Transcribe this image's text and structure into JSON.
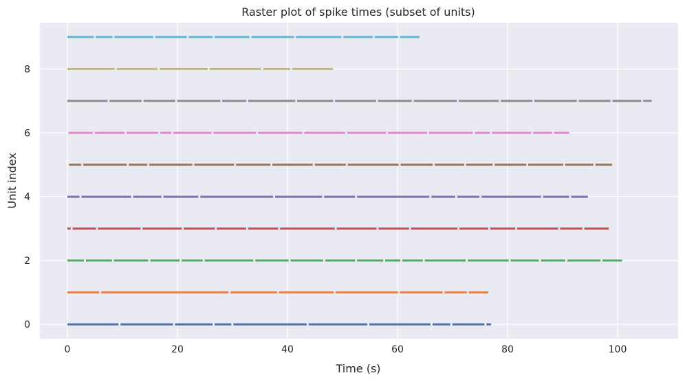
{
  "chart_data": {
    "type": "scatter",
    "subtype": "raster",
    "title": "Raster plot of spike times (subset of units)",
    "xlabel": "Time (s)",
    "ylabel": "Unit index",
    "xlim": [
      -5,
      111
    ],
    "ylim": [
      -0.45,
      9.45
    ],
    "x_ticks": [
      "0",
      "20",
      "40",
      "60",
      "80",
      "100"
    ],
    "y_ticks": [
      "0",
      "2",
      "4",
      "6",
      "8"
    ],
    "grid": true,
    "background": "#eaeaf2",
    "legend": "none",
    "series": [
      {
        "unit": 0,
        "t_start": 0.0,
        "t_end": 77.0,
        "color": "#4c72b0",
        "gaps": [
          9.3,
          19.2,
          26.4,
          29.8,
          43.5,
          54.5,
          66.0,
          69.6,
          75.8
        ]
      },
      {
        "unit": 1,
        "t_start": 0.0,
        "t_end": 76.5,
        "color": "#dd8452",
        "gaps": [
          5.8,
          29.3,
          38.1,
          48.4,
          60.1,
          68.2,
          72.6
        ]
      },
      {
        "unit": 2,
        "t_start": 0.0,
        "t_end": 100.8,
        "color": "#55a868",
        "gaps": [
          3.0,
          8.1,
          14.7,
          20.4,
          24.6,
          33.8,
          40.2,
          46.5,
          52.3,
          57.4,
          60.5,
          64.6,
          72.4,
          80.2,
          85.7,
          90.5,
          96.9
        ]
      },
      {
        "unit": 3,
        "t_start": 0.0,
        "t_end": 98.4,
        "color": "#c44e52",
        "gaps": [
          0.6,
          5.2,
          13.3,
          20.8,
          26.8,
          32.5,
          38.3,
          48.6,
          56.2,
          62.1,
          70.9,
          76.5,
          81.4,
          89.2,
          93.6
        ]
      },
      {
        "unit": 4,
        "t_start": 0.0,
        "t_end": 94.6,
        "color": "#8172b3",
        "gaps": [
          2.2,
          11.6,
          17.1,
          23.8,
          37.4,
          46.3,
          52.3,
          65.8,
          70.5,
          74.9,
          86.1,
          91.2
        ]
      },
      {
        "unit": 5,
        "t_start": 0.3,
        "t_end": 99.0,
        "color": "#937860",
        "gaps": [
          2.5,
          10.8,
          14.5,
          22.7,
          30.3,
          36.9,
          44.6,
          50.6,
          60.2,
          66.4,
          72.1,
          77.3,
          83.4,
          90.1,
          95.6
        ]
      },
      {
        "unit": 6,
        "t_start": 0.2,
        "t_end": 91.2,
        "color": "#da8bc3",
        "gaps": [
          4.6,
          10.4,
          16.5,
          18.9,
          26.2,
          34.3,
          42.7,
          50.5,
          57.9,
          65.4,
          73.7,
          76.8,
          84.3,
          88.1
        ]
      },
      {
        "unit": 7,
        "t_start": 0.0,
        "t_end": 106.2,
        "color": "#8c8c8c",
        "gaps": [
          7.3,
          13.5,
          19.6,
          27.8,
          32.5,
          41.4,
          48.3,
          56.1,
          62.6,
          70.8,
          78.4,
          84.5,
          92.6,
          98.7,
          104.3
        ]
      },
      {
        "unit": 8,
        "t_start": 0.0,
        "t_end": 48.3,
        "color": "#ccb974",
        "gaps": [
          8.6,
          16.4,
          25.5,
          35.2,
          40.5
        ]
      },
      {
        "unit": 9,
        "t_start": 0.0,
        "t_end": 64.0,
        "color": "#64b5cd",
        "gaps": [
          4.8,
          8.2,
          15.6,
          21.7,
          26.4,
          33.1,
          41.2,
          49.8,
          55.5,
          60.1
        ]
      }
    ]
  }
}
